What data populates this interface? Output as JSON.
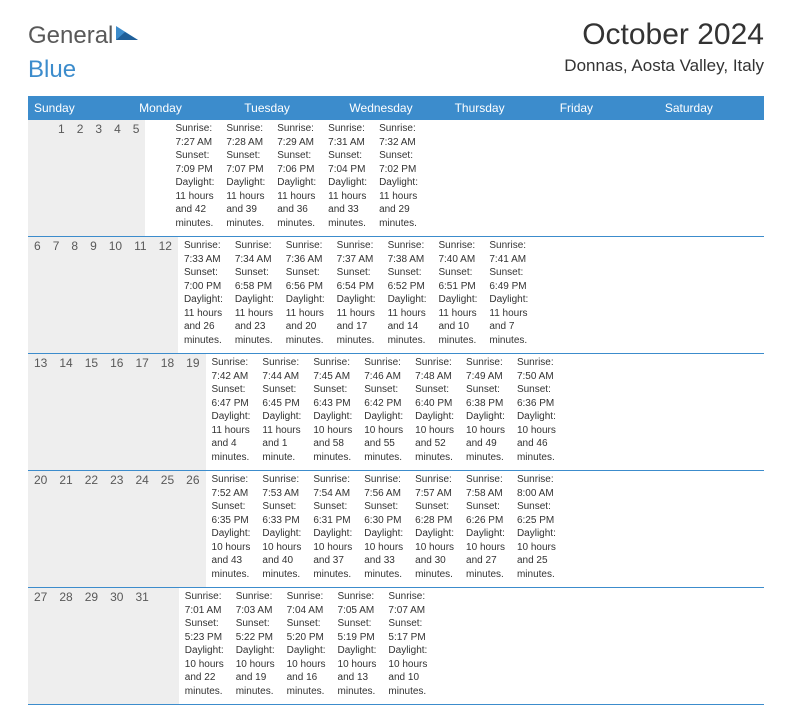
{
  "brand": {
    "word1": "General",
    "word2": "Blue"
  },
  "title": "October 2024",
  "location": "Donnas, Aosta Valley, Italy",
  "colors": {
    "header_bg": "#3c8ccc",
    "daynum_bg": "#eeeeee",
    "text_muted": "#595959",
    "text_body": "#333333",
    "row_border": "#3c8ccc"
  },
  "dow": [
    "Sunday",
    "Monday",
    "Tuesday",
    "Wednesday",
    "Thursday",
    "Friday",
    "Saturday"
  ],
  "weeks": [
    [
      {
        "n": "",
        "sr": "",
        "ss": "",
        "dl": ""
      },
      {
        "n": "",
        "sr": "",
        "ss": "",
        "dl": ""
      },
      {
        "n": "1",
        "sr": "Sunrise: 7:27 AM",
        "ss": "Sunset: 7:09 PM",
        "dl": "Daylight: 11 hours and 42 minutes."
      },
      {
        "n": "2",
        "sr": "Sunrise: 7:28 AM",
        "ss": "Sunset: 7:07 PM",
        "dl": "Daylight: 11 hours and 39 minutes."
      },
      {
        "n": "3",
        "sr": "Sunrise: 7:29 AM",
        "ss": "Sunset: 7:06 PM",
        "dl": "Daylight: 11 hours and 36 minutes."
      },
      {
        "n": "4",
        "sr": "Sunrise: 7:31 AM",
        "ss": "Sunset: 7:04 PM",
        "dl": "Daylight: 11 hours and 33 minutes."
      },
      {
        "n": "5",
        "sr": "Sunrise: 7:32 AM",
        "ss": "Sunset: 7:02 PM",
        "dl": "Daylight: 11 hours and 29 minutes."
      }
    ],
    [
      {
        "n": "6",
        "sr": "Sunrise: 7:33 AM",
        "ss": "Sunset: 7:00 PM",
        "dl": "Daylight: 11 hours and 26 minutes."
      },
      {
        "n": "7",
        "sr": "Sunrise: 7:34 AM",
        "ss": "Sunset: 6:58 PM",
        "dl": "Daylight: 11 hours and 23 minutes."
      },
      {
        "n": "8",
        "sr": "Sunrise: 7:36 AM",
        "ss": "Sunset: 6:56 PM",
        "dl": "Daylight: 11 hours and 20 minutes."
      },
      {
        "n": "9",
        "sr": "Sunrise: 7:37 AM",
        "ss": "Sunset: 6:54 PM",
        "dl": "Daylight: 11 hours and 17 minutes."
      },
      {
        "n": "10",
        "sr": "Sunrise: 7:38 AM",
        "ss": "Sunset: 6:52 PM",
        "dl": "Daylight: 11 hours and 14 minutes."
      },
      {
        "n": "11",
        "sr": "Sunrise: 7:40 AM",
        "ss": "Sunset: 6:51 PM",
        "dl": "Daylight: 11 hours and 10 minutes."
      },
      {
        "n": "12",
        "sr": "Sunrise: 7:41 AM",
        "ss": "Sunset: 6:49 PM",
        "dl": "Daylight: 11 hours and 7 minutes."
      }
    ],
    [
      {
        "n": "13",
        "sr": "Sunrise: 7:42 AM",
        "ss": "Sunset: 6:47 PM",
        "dl": "Daylight: 11 hours and 4 minutes."
      },
      {
        "n": "14",
        "sr": "Sunrise: 7:44 AM",
        "ss": "Sunset: 6:45 PM",
        "dl": "Daylight: 11 hours and 1 minute."
      },
      {
        "n": "15",
        "sr": "Sunrise: 7:45 AM",
        "ss": "Sunset: 6:43 PM",
        "dl": "Daylight: 10 hours and 58 minutes."
      },
      {
        "n": "16",
        "sr": "Sunrise: 7:46 AM",
        "ss": "Sunset: 6:42 PM",
        "dl": "Daylight: 10 hours and 55 minutes."
      },
      {
        "n": "17",
        "sr": "Sunrise: 7:48 AM",
        "ss": "Sunset: 6:40 PM",
        "dl": "Daylight: 10 hours and 52 minutes."
      },
      {
        "n": "18",
        "sr": "Sunrise: 7:49 AM",
        "ss": "Sunset: 6:38 PM",
        "dl": "Daylight: 10 hours and 49 minutes."
      },
      {
        "n": "19",
        "sr": "Sunrise: 7:50 AM",
        "ss": "Sunset: 6:36 PM",
        "dl": "Daylight: 10 hours and 46 minutes."
      }
    ],
    [
      {
        "n": "20",
        "sr": "Sunrise: 7:52 AM",
        "ss": "Sunset: 6:35 PM",
        "dl": "Daylight: 10 hours and 43 minutes."
      },
      {
        "n": "21",
        "sr": "Sunrise: 7:53 AM",
        "ss": "Sunset: 6:33 PM",
        "dl": "Daylight: 10 hours and 40 minutes."
      },
      {
        "n": "22",
        "sr": "Sunrise: 7:54 AM",
        "ss": "Sunset: 6:31 PM",
        "dl": "Daylight: 10 hours and 37 minutes."
      },
      {
        "n": "23",
        "sr": "Sunrise: 7:56 AM",
        "ss": "Sunset: 6:30 PM",
        "dl": "Daylight: 10 hours and 33 minutes."
      },
      {
        "n": "24",
        "sr": "Sunrise: 7:57 AM",
        "ss": "Sunset: 6:28 PM",
        "dl": "Daylight: 10 hours and 30 minutes."
      },
      {
        "n": "25",
        "sr": "Sunrise: 7:58 AM",
        "ss": "Sunset: 6:26 PM",
        "dl": "Daylight: 10 hours and 27 minutes."
      },
      {
        "n": "26",
        "sr": "Sunrise: 8:00 AM",
        "ss": "Sunset: 6:25 PM",
        "dl": "Daylight: 10 hours and 25 minutes."
      }
    ],
    [
      {
        "n": "27",
        "sr": "Sunrise: 7:01 AM",
        "ss": "Sunset: 5:23 PM",
        "dl": "Daylight: 10 hours and 22 minutes."
      },
      {
        "n": "28",
        "sr": "Sunrise: 7:03 AM",
        "ss": "Sunset: 5:22 PM",
        "dl": "Daylight: 10 hours and 19 minutes."
      },
      {
        "n": "29",
        "sr": "Sunrise: 7:04 AM",
        "ss": "Sunset: 5:20 PM",
        "dl": "Daylight: 10 hours and 16 minutes."
      },
      {
        "n": "30",
        "sr": "Sunrise: 7:05 AM",
        "ss": "Sunset: 5:19 PM",
        "dl": "Daylight: 10 hours and 13 minutes."
      },
      {
        "n": "31",
        "sr": "Sunrise: 7:07 AM",
        "ss": "Sunset: 5:17 PM",
        "dl": "Daylight: 10 hours and 10 minutes."
      },
      {
        "n": "",
        "sr": "",
        "ss": "",
        "dl": ""
      },
      {
        "n": "",
        "sr": "",
        "ss": "",
        "dl": ""
      }
    ]
  ]
}
